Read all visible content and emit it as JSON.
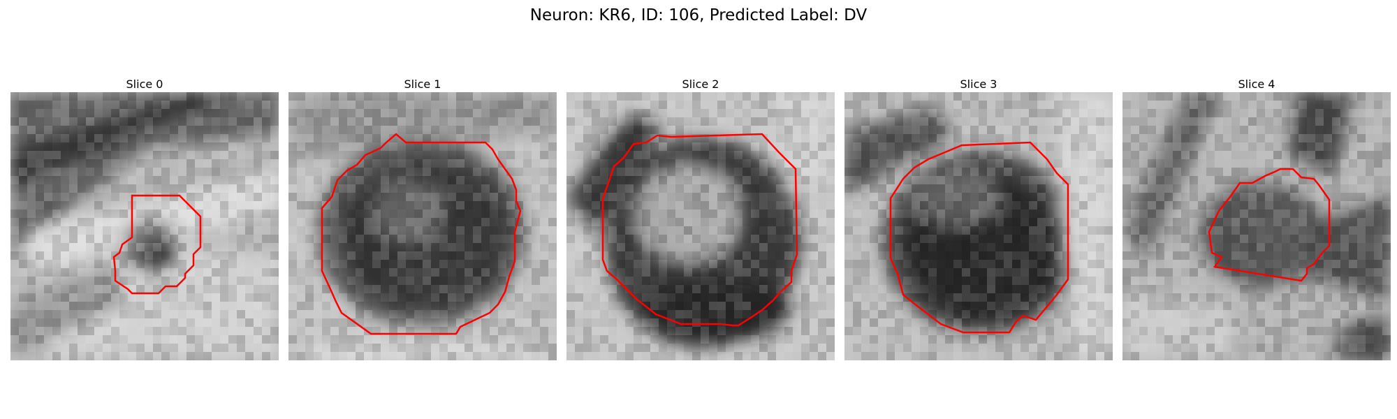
{
  "figure": {
    "title": "Neuron: KR6, ID: 106, Predicted Label: DV",
    "contour_color": "#ff0000",
    "panels": [
      {
        "title": "Slice 0"
      },
      {
        "title": "Slice 1"
      },
      {
        "title": "Slice 2"
      },
      {
        "title": "Slice 3"
      },
      {
        "title": "Slice 4"
      }
    ]
  }
}
